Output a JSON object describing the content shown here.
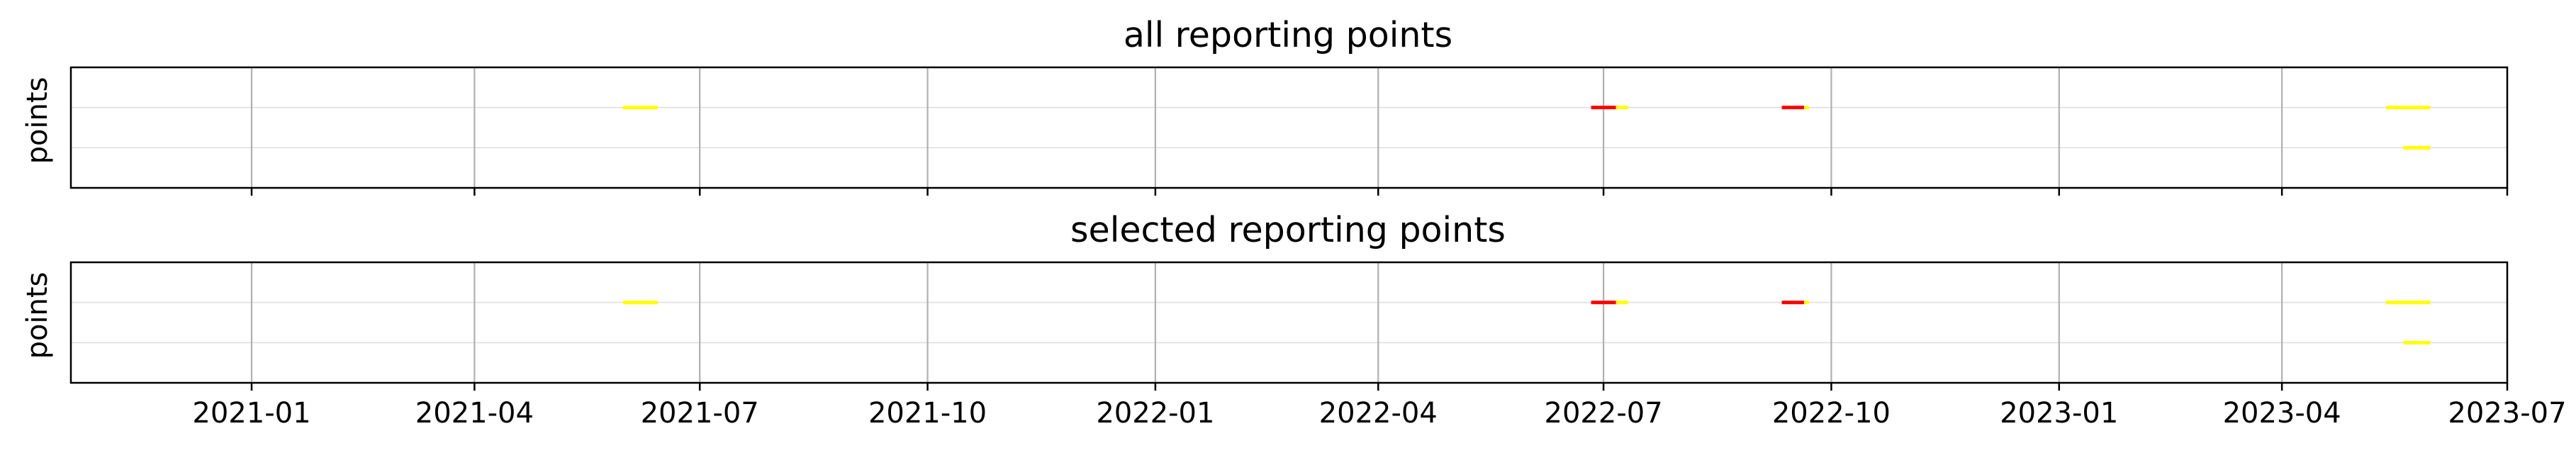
{
  "chart_data": [
    {
      "type": "gantt",
      "title": "all reporting points",
      "ylabel": "points",
      "xlim": [
        "2020-10-20",
        "2023-07-01"
      ],
      "x_tick_labels_visible": false,
      "grid": "x major lines; faint horizontal row lines",
      "rows": 3,
      "series": [
        {
          "color": "#ffff00",
          "row": 1,
          "start": "2021-05-31",
          "end": "2021-06-14"
        },
        {
          "color": "#ff0000",
          "row": 1,
          "start": "2022-06-26",
          "end": "2022-07-07"
        },
        {
          "color": "#ffff00",
          "row": 1,
          "start": "2022-07-06",
          "end": "2022-07-11"
        },
        {
          "color": "#ff0000",
          "row": 1,
          "start": "2022-09-11",
          "end": "2022-09-20"
        },
        {
          "color": "#ffff00",
          "row": 1,
          "start": "2022-09-20",
          "end": "2022-09-22"
        },
        {
          "color": "#ffff00",
          "row": 1,
          "start": "2023-05-13",
          "end": "2023-05-31"
        },
        {
          "color": "#ffff00",
          "row": 2,
          "start": "2023-05-20",
          "end": "2023-05-31"
        }
      ]
    },
    {
      "type": "gantt",
      "title": "selected reporting points",
      "ylabel": "points",
      "xlim": [
        "2020-10-20",
        "2023-07-01"
      ],
      "x_tick_labels_visible": true,
      "grid": "x major lines; faint horizontal row lines",
      "rows": 3,
      "series": [
        {
          "color": "#ffff00",
          "row": 1,
          "start": "2021-05-31",
          "end": "2021-06-14"
        },
        {
          "color": "#ff0000",
          "row": 1,
          "start": "2022-06-26",
          "end": "2022-07-07"
        },
        {
          "color": "#ffff00",
          "row": 1,
          "start": "2022-07-06",
          "end": "2022-07-11"
        },
        {
          "color": "#ff0000",
          "row": 1,
          "start": "2022-09-11",
          "end": "2022-09-20"
        },
        {
          "color": "#ffff00",
          "row": 1,
          "start": "2022-09-20",
          "end": "2022-09-22"
        },
        {
          "color": "#ffff00",
          "row": 1,
          "start": "2023-05-13",
          "end": "2023-05-31"
        },
        {
          "color": "#ffff00",
          "row": 2,
          "start": "2023-05-20",
          "end": "2023-05-31"
        }
      ]
    }
  ],
  "x_ticks": [
    {
      "date": "2021-01-01",
      "label": "2021-01"
    },
    {
      "date": "2021-04-01",
      "label": "2021-04"
    },
    {
      "date": "2021-07-01",
      "label": "2021-07"
    },
    {
      "date": "2021-10-01",
      "label": "2021-10"
    },
    {
      "date": "2022-01-01",
      "label": "2022-01"
    },
    {
      "date": "2022-04-01",
      "label": "2022-04"
    },
    {
      "date": "2022-07-01",
      "label": "2022-07"
    },
    {
      "date": "2022-10-01",
      "label": "2022-10"
    },
    {
      "date": "2023-01-01",
      "label": "2023-01"
    },
    {
      "date": "2023-04-01",
      "label": "2023-04"
    },
    {
      "date": "2023-07-01",
      "label": "2023-07"
    }
  ],
  "colors": {
    "grid": "#b0b0b0",
    "row_line": "#dcdcdc",
    "axes": "#000000"
  }
}
